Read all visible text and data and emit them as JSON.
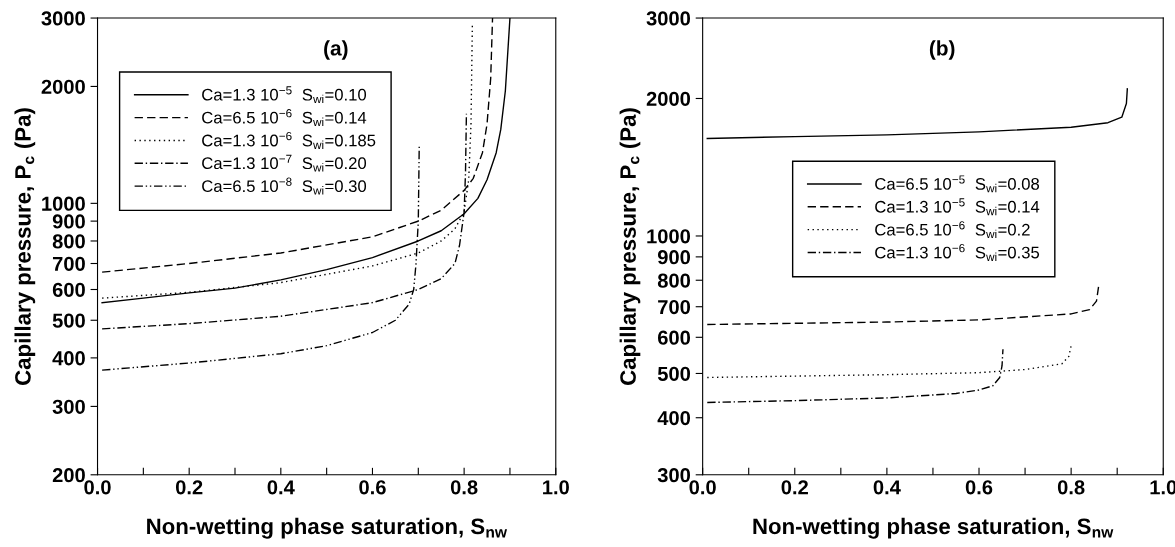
{
  "chart_data": [
    {
      "type": "line",
      "annotations": [
        "(a)"
      ],
      "xlabel": "Non-wetting phase saturation, S$_{nw}$",
      "ylabel": "Capillary pressure, P$_{c}$ (Pa)",
      "log": "y",
      "grid": false,
      "legend": "top left",
      "xlim": [
        0,
        1
      ],
      "ylim": [
        200,
        3000
      ],
      "xticks": [
        {
          "value": 0,
          "label": "0.0"
        },
        {
          "value": 0.1,
          "label": null
        },
        {
          "value": 0.2,
          "label": "0.2"
        },
        {
          "value": 0.3,
          "label": null
        },
        {
          "value": 0.4,
          "label": "0.4"
        },
        {
          "value": 0.5,
          "label": null
        },
        {
          "value": 0.6,
          "label": "0.6"
        },
        {
          "value": 0.7,
          "label": null
        },
        {
          "value": 0.8,
          "label": "0.8"
        },
        {
          "value": 0.9,
          "label": null
        },
        {
          "value": 1,
          "label": "1.0"
        }
      ],
      "yticks": [
        200,
        300,
        400,
        500,
        600,
        700,
        800,
        900,
        1000,
        2000,
        3000
      ],
      "series": [
        {
          "name": "Ca=1.3 10$^{−5}$  S$_{wi}$=0.10",
          "color": "#000000",
          "line_style": "solid",
          "x": [
            0.01,
            0.1,
            0.2,
            0.3,
            0.4,
            0.5,
            0.6,
            0.7,
            0.75,
            0.8,
            0.83,
            0.85,
            0.87,
            0.88,
            0.89,
            0.9
          ],
          "values": [
            555,
            570,
            588,
            605,
            635,
            675,
            725,
            800,
            850,
            940,
            1030,
            1150,
            1350,
            1550,
            1950,
            3000
          ]
        },
        {
          "name": "Ca=6.5 10$^{−6}$  S$_{wi}$=0.14",
          "color": "#000000",
          "line_style": "dashed",
          "x": [
            0.01,
            0.2,
            0.4,
            0.6,
            0.7,
            0.75,
            0.8,
            0.82,
            0.84,
            0.85,
            0.858,
            0.862
          ],
          "values": [
            665,
            700,
            745,
            820,
            900,
            960,
            1080,
            1160,
            1350,
            1600,
            2100,
            3000
          ]
        },
        {
          "name": "Ca=1.3 10$^{−6}$  S$_{wi}$=0.185",
          "color": "#000000",
          "line_style": "dotted",
          "x": [
            0.01,
            0.2,
            0.4,
            0.6,
            0.7,
            0.75,
            0.78,
            0.8,
            0.81,
            0.815,
            0.818
          ],
          "values": [
            570,
            590,
            625,
            690,
            745,
            800,
            860,
            950,
            1150,
            1600,
            2900
          ]
        },
        {
          "name": "Ca=1.3 10$^{−7}$  S$_{wi}$=0.20",
          "color": "#000000",
          "line_style": "dashdot",
          "x": [
            0.01,
            0.2,
            0.4,
            0.6,
            0.7,
            0.75,
            0.78,
            0.79,
            0.8,
            0.803,
            0.805
          ],
          "values": [
            475,
            490,
            512,
            555,
            600,
            640,
            700,
            780,
            950,
            1200,
            1700
          ]
        },
        {
          "name": "Ca=6.5 10$^{−8}$  S$_{wi}$=0.30",
          "color": "#000000",
          "line_style": "dashdotdot",
          "x": [
            0.01,
            0.2,
            0.4,
            0.5,
            0.6,
            0.65,
            0.68,
            0.69,
            0.695,
            0.7,
            0.702
          ],
          "values": [
            372,
            388,
            410,
            430,
            465,
            500,
            550,
            600,
            700,
            900,
            1400
          ]
        }
      ]
    },
    {
      "type": "line",
      "annotations": [
        "(b)"
      ],
      "xlabel": "Non-wetting phase saturation, S$_{nw}$",
      "ylabel": "Capillary pressure, P$_{c}$ (Pa)",
      "log": "y",
      "grid": false,
      "legend": "center",
      "xlim": [
        0,
        1
      ],
      "ylim": [
        300,
        3000
      ],
      "xticks": [
        {
          "value": 0,
          "label": "0.0"
        },
        {
          "value": 0.1,
          "label": null
        },
        {
          "value": 0.2,
          "label": "0.2"
        },
        {
          "value": 0.3,
          "label": null
        },
        {
          "value": 0.4,
          "label": "0.4"
        },
        {
          "value": 0.5,
          "label": null
        },
        {
          "value": 0.6,
          "label": "0.6"
        },
        {
          "value": 0.7,
          "label": null
        },
        {
          "value": 0.8,
          "label": "0.8"
        },
        {
          "value": 0.9,
          "label": null
        },
        {
          "value": 1,
          "label": "1.0"
        }
      ],
      "yticks": [
        300,
        400,
        500,
        600,
        700,
        800,
        900,
        1000,
        2000,
        3000
      ],
      "series": [
        {
          "name": "Ca=6.5 10$^{−5}$  S$_{wi}$=0.08",
          "color": "#000000",
          "line_style": "solid",
          "x": [
            0.01,
            0.2,
            0.4,
            0.6,
            0.8,
            0.88,
            0.91,
            0.92,
            0.922
          ],
          "values": [
            1635,
            1650,
            1665,
            1690,
            1730,
            1770,
            1820,
            1950,
            2100
          ]
        },
        {
          "name": "Ca=1.3 10$^{−5}$  S$_{wi}$=0.14",
          "color": "#000000",
          "line_style": "dashed",
          "x": [
            0.01,
            0.4,
            0.6,
            0.8,
            0.84,
            0.855,
            0.86
          ],
          "values": [
            640,
            648,
            655,
            675,
            690,
            720,
            780
          ]
        },
        {
          "name": "Ca=6.5 10$^{−6}$  S$_{wi}$=0.2",
          "color": "#000000",
          "line_style": "dotted",
          "x": [
            0.01,
            0.4,
            0.6,
            0.7,
            0.78,
            0.795,
            0.8
          ],
          "values": [
            490,
            497,
            502,
            510,
            525,
            545,
            575
          ]
        },
        {
          "name": "Ca=1.3 10$^{−6}$  S$_{wi}$=0.35",
          "color": "#000000",
          "line_style": "dashdot",
          "x": [
            0.01,
            0.2,
            0.4,
            0.55,
            0.6,
            0.63,
            0.645,
            0.65,
            0.652
          ],
          "values": [
            432,
            436,
            442,
            452,
            460,
            470,
            490,
            520,
            565
          ]
        }
      ]
    }
  ]
}
